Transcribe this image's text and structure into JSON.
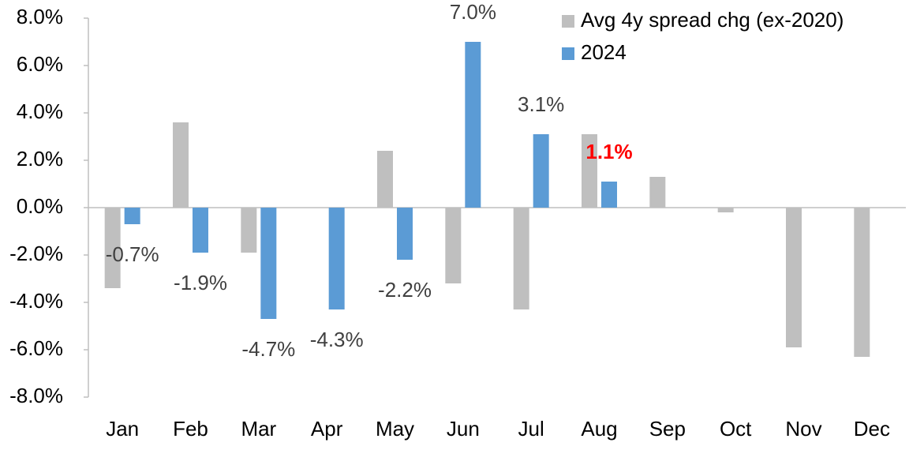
{
  "chart_data": {
    "type": "bar",
    "categories": [
      "Jan",
      "Feb",
      "Mar",
      "Apr",
      "May",
      "Jun",
      "Jul",
      "Aug",
      "Sep",
      "Oct",
      "Nov",
      "Dec"
    ],
    "series": [
      {
        "name": "Avg 4y spread chg (ex-2020)",
        "color": "#bfbfbf",
        "values": [
          -3.4,
          3.6,
          -1.9,
          0,
          2.4,
          -3.2,
          -4.3,
          3.1,
          1.3,
          -0.2,
          -5.9,
          -6.3
        ]
      },
      {
        "name": "2024",
        "color": "#5b9bd5",
        "values": [
          -0.7,
          -1.9,
          -4.7,
          -4.3,
          -2.2,
          7.0,
          3.1,
          1.1,
          null,
          null,
          null,
          null
        ],
        "value_labels": [
          "-0.7%",
          "-1.9%",
          "-4.7%",
          "-4.3%",
          "-2.2%",
          "7.0%",
          "3.1%",
          "1.1%",
          null,
          null,
          null,
          null
        ],
        "highlight": {
          "index": 7,
          "color": "#ff0000"
        }
      }
    ],
    "ylim": [
      -8,
      8
    ],
    "yticks": [
      {
        "value": -8,
        "label": "-8.0%"
      },
      {
        "value": -6,
        "label": "-6.0%"
      },
      {
        "value": -4,
        "label": "-4.0%"
      },
      {
        "value": -2,
        "label": "-2.0%"
      },
      {
        "value": 0,
        "label": "0.0%"
      },
      {
        "value": 2,
        "label": "2.0%"
      },
      {
        "value": 4,
        "label": "4.0%"
      },
      {
        "value": 6,
        "label": "6.0%"
      },
      {
        "value": 8,
        "label": "8.0%"
      }
    ],
    "grid": false,
    "legend": "upper right"
  }
}
